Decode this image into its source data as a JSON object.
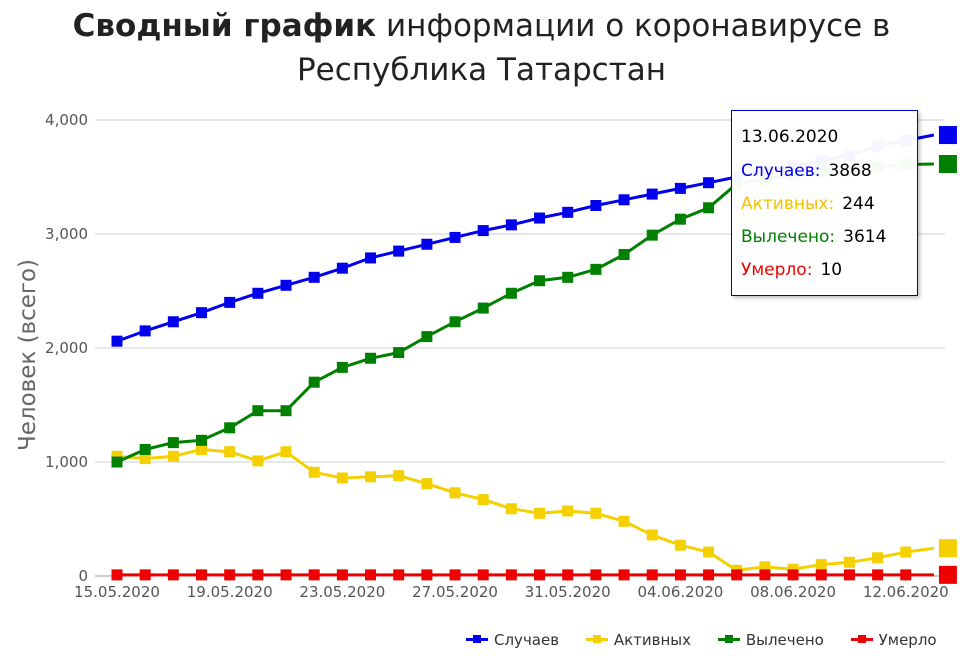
{
  "title_bold": "Сводный график",
  "title_rest": " информации о коронавирусе в Республика Татарстан",
  "chart_data": {
    "type": "line",
    "ylabel": "Человек (всего)",
    "xlabel": "",
    "ylim": [
      0,
      4000
    ],
    "yticks": [
      "0",
      "1,000",
      "2,000",
      "3,000",
      "4,000"
    ],
    "x": [
      "15.05.2020",
      "16.05.2020",
      "17.05.2020",
      "18.05.2020",
      "19.05.2020",
      "20.05.2020",
      "21.05.2020",
      "22.05.2020",
      "23.05.2020",
      "24.05.2020",
      "25.05.2020",
      "26.05.2020",
      "27.05.2020",
      "28.05.2020",
      "29.05.2020",
      "30.05.2020",
      "31.05.2020",
      "01.06.2020",
      "02.06.2020",
      "03.06.2020",
      "04.06.2020",
      "05.06.2020",
      "06.06.2020",
      "07.06.2020",
      "08.06.2020",
      "09.06.2020",
      "10.06.2020",
      "11.06.2020",
      "12.06.2020",
      "13.06.2020"
    ],
    "xtick_labels": [
      "15.05.2020",
      "19.05.2020",
      "23.05.2020",
      "27.05.2020",
      "31.05.2020",
      "04.06.2020",
      "08.06.2020",
      "12.06.2020"
    ],
    "grid": true,
    "legend_position": "bottom-right",
    "series": [
      {
        "name": "Случаев",
        "color": "#0000ee",
        "values": [
          2060,
          2150,
          2230,
          2310,
          2400,
          2480,
          2550,
          2620,
          2700,
          2790,
          2850,
          2910,
          2970,
          3030,
          3080,
          3140,
          3190,
          3250,
          3300,
          3350,
          3400,
          3450,
          3500,
          3560,
          3600,
          3640,
          3690,
          3770,
          3820,
          3868
        ]
      },
      {
        "name": "Активных",
        "color": "#f5d000",
        "values": [
          1050,
          1030,
          1050,
          1110,
          1090,
          1010,
          1090,
          910,
          860,
          870,
          880,
          810,
          730,
          670,
          590,
          550,
          570,
          550,
          480,
          360,
          270,
          210,
          50,
          80,
          60,
          100,
          120,
          160,
          210,
          244
        ]
      },
      {
        "name": "Вылечено",
        "color": "#008000",
        "values": [
          1000,
          1110,
          1170,
          1190,
          1300,
          1450,
          1450,
          1700,
          1830,
          1910,
          1960,
          2100,
          2230,
          2350,
          2480,
          2590,
          2620,
          2690,
          2820,
          2990,
          3130,
          3230,
          3440,
          3480,
          3520,
          3540,
          3550,
          3590,
          3610,
          3614
        ]
      },
      {
        "name": "Умерло",
        "color": "#ee0000",
        "values": [
          10,
          10,
          10,
          10,
          10,
          10,
          10,
          10,
          10,
          10,
          10,
          10,
          10,
          10,
          10,
          10,
          10,
          10,
          10,
          10,
          10,
          10,
          10,
          10,
          10,
          10,
          10,
          10,
          10,
          10
        ]
      }
    ]
  },
  "tooltip": {
    "date": "13.06.2020",
    "rows": [
      {
        "label": "Случаев:",
        "value": "3868",
        "color": "#0000ee"
      },
      {
        "label": "Активных:",
        "value": "244",
        "color": "#f5d000"
      },
      {
        "label": "Вылечено:",
        "value": "3614",
        "color": "#008000"
      },
      {
        "label": "Умерло:",
        "value": "10",
        "color": "#ee0000"
      }
    ]
  }
}
